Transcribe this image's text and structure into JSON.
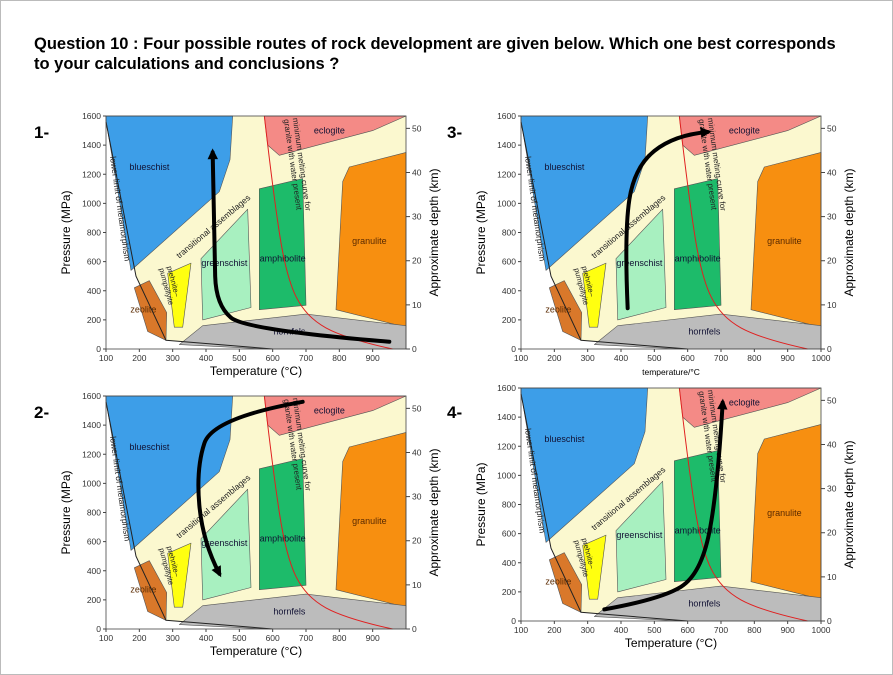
{
  "question": "Question 10 : Four possible routes of rock development are given below. Which one best corresponds to your calculations and conclusions ?",
  "colors": {
    "background": "#fbf8cf",
    "blueschist": "#3d9ee8",
    "eclogite": "#f48a86",
    "granulite": "#f78f10",
    "amphibolite": "#1dbb6a",
    "greenschist": "#a8f0c0",
    "prehnite": "#ffff10",
    "zeolite": "#d9782a",
    "hornfels": "#bcbcbc",
    "melting_curve": "#e02020",
    "arrow": "#000000"
  },
  "facies": {
    "blueschist": "blueschist",
    "eclogite": "eclogite",
    "granulite": "granulite",
    "amphibolite": "amphibolite",
    "greenschist": "greenschist",
    "prehnite": "prehnite–pumpellyite",
    "zeolite": "zeolite",
    "hornfels": "hornfels",
    "transitional": "transitional assemblages",
    "lower_limit": "lower limit of metamorphism",
    "melting": "minimum melting curve for granite with water present"
  },
  "pressure_ticks": [
    "0",
    "200",
    "400",
    "600",
    "800",
    "1000",
    "1200",
    "1400",
    "1600"
  ],
  "depth_ticks": [
    "0",
    "10",
    "20",
    "30",
    "40",
    "50"
  ],
  "panels": [
    {
      "number": "1-",
      "xlabel": "Temperature (°C)",
      "ylabel": "Pressure (MPa)",
      "y2label": "Approximate depth (km)",
      "temp_ticks": [
        "100",
        "200",
        "300",
        "400",
        "500",
        "600",
        "700",
        "800",
        "900"
      ],
      "route": "from ~950°C/50 MPa curving through ~450°C/250 MPa up to ~420°C/1350 MPa"
    },
    {
      "number": "2-",
      "xlabel": "Temperature (°C)",
      "ylabel": "Pressure (MPa)",
      "y2label": "Approximate depth (km)",
      "temp_ticks": [
        "100",
        "200",
        "300",
        "400",
        "500",
        "600",
        "700",
        "800",
        "900"
      ],
      "route": "from ~690°C/1560 MPa arcing down to ~440°C/380 MPa"
    },
    {
      "number": "3-",
      "xlabel": "temperature/°C",
      "ylabel": "Pressure (MPa)",
      "y2label": "Approximate depth (km)",
      "temp_ticks": [
        "100",
        "200",
        "300",
        "400",
        "500",
        "600",
        "700",
        "800",
        "900",
        "1000"
      ],
      "route": "from ~420°C/280 MPa up and right to ~660°C/1480 MPa"
    },
    {
      "number": "4-",
      "xlabel": "Temperature (°C)",
      "ylabel": "Pressure (MPa)",
      "y2label": "Approximate depth (km)",
      "temp_ticks": [
        "100",
        "200",
        "300",
        "400",
        "500",
        "600",
        "700",
        "800",
        "900",
        "1000"
      ],
      "route": "from ~350°C/80 MPa curving right and up to ~700°C/1500 MPa"
    }
  ]
}
